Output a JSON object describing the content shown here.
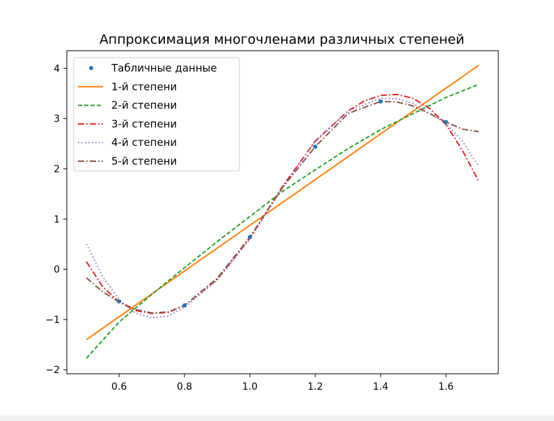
{
  "chart_data": {
    "type": "line",
    "title": "Аппроксимация многочленами различных степеней",
    "xlabel": "",
    "ylabel": "",
    "xlim": [
      0.44,
      1.76
    ],
    "ylim": [
      -2.08,
      4.35
    ],
    "xticks": [
      0.6,
      0.8,
      1.0,
      1.2,
      1.4,
      1.6
    ],
    "xtick_labels": [
      "0.6",
      "0.8",
      "1.0",
      "1.2",
      "1.4",
      "1.6"
    ],
    "yticks": [
      -2,
      -1,
      0,
      1,
      2,
      3,
      4
    ],
    "ytick_labels": [
      "−2",
      "−1",
      "0",
      "1",
      "2",
      "3",
      "4"
    ],
    "grid": false,
    "legend": "top-left",
    "points": {
      "name": "Табличные данные",
      "color": "#1f77b4",
      "x": [
        0.6,
        0.8,
        1.0,
        1.2,
        1.4,
        1.6
      ],
      "y": [
        -0.64,
        -0.72,
        0.64,
        2.44,
        3.34,
        2.93
      ]
    },
    "series": [
      {
        "name": "1-й степени",
        "color": "#ff7f0e",
        "dash": "solid",
        "x": [
          0.5,
          1.7
        ],
        "y": [
          -1.4,
          4.06
        ]
      },
      {
        "name": "2-й степени",
        "color": "#2ca02c",
        "dash": "dashed",
        "x": [
          0.5,
          0.6,
          0.7,
          0.8,
          0.9,
          1.0,
          1.1,
          1.2,
          1.3,
          1.4,
          1.5,
          1.6,
          1.7
        ],
        "y": [
          -1.77,
          -1.05,
          -0.5,
          0.03,
          0.55,
          1.05,
          1.55,
          1.98,
          2.4,
          2.78,
          3.1,
          3.42,
          3.68
        ]
      },
      {
        "name": "3-й степени",
        "color": "#d62728",
        "dash": "dashdot",
        "x": [
          0.5,
          0.55,
          0.6,
          0.65,
          0.7,
          0.75,
          0.8,
          0.9,
          1.0,
          1.1,
          1.2,
          1.3,
          1.35,
          1.4,
          1.45,
          1.5,
          1.55,
          1.6,
          1.65,
          1.7
        ],
        "y": [
          0.15,
          -0.35,
          -0.65,
          -0.82,
          -0.88,
          -0.86,
          -0.72,
          -0.2,
          0.62,
          1.65,
          2.55,
          3.15,
          3.35,
          3.46,
          3.48,
          3.4,
          3.2,
          2.88,
          2.37,
          1.75
        ]
      },
      {
        "name": "4-й степени",
        "color": "#9467bd",
        "dash": "dotted",
        "x": [
          0.5,
          0.55,
          0.6,
          0.65,
          0.7,
          0.75,
          0.8,
          0.9,
          1.0,
          1.1,
          1.2,
          1.3,
          1.4,
          1.45,
          1.5,
          1.55,
          1.6,
          1.65,
          1.7
        ],
        "y": [
          0.5,
          -0.15,
          -0.6,
          -0.87,
          -0.97,
          -0.93,
          -0.76,
          -0.22,
          0.6,
          1.62,
          2.55,
          3.15,
          3.4,
          3.4,
          3.3,
          3.1,
          2.9,
          2.55,
          2.05
        ]
      },
      {
        "name": "5-й степени",
        "color": "#8c564b",
        "dash": "dashdot",
        "x": [
          0.5,
          0.55,
          0.6,
          0.65,
          0.7,
          0.75,
          0.8,
          0.9,
          1.0,
          1.1,
          1.2,
          1.3,
          1.4,
          1.45,
          1.5,
          1.55,
          1.6,
          1.65,
          1.7
        ],
        "y": [
          -0.17,
          -0.45,
          -0.65,
          -0.8,
          -0.87,
          -0.85,
          -0.72,
          -0.18,
          0.64,
          1.63,
          2.44,
          3.1,
          3.34,
          3.33,
          3.25,
          3.1,
          2.93,
          2.79,
          2.74
        ]
      }
    ]
  }
}
